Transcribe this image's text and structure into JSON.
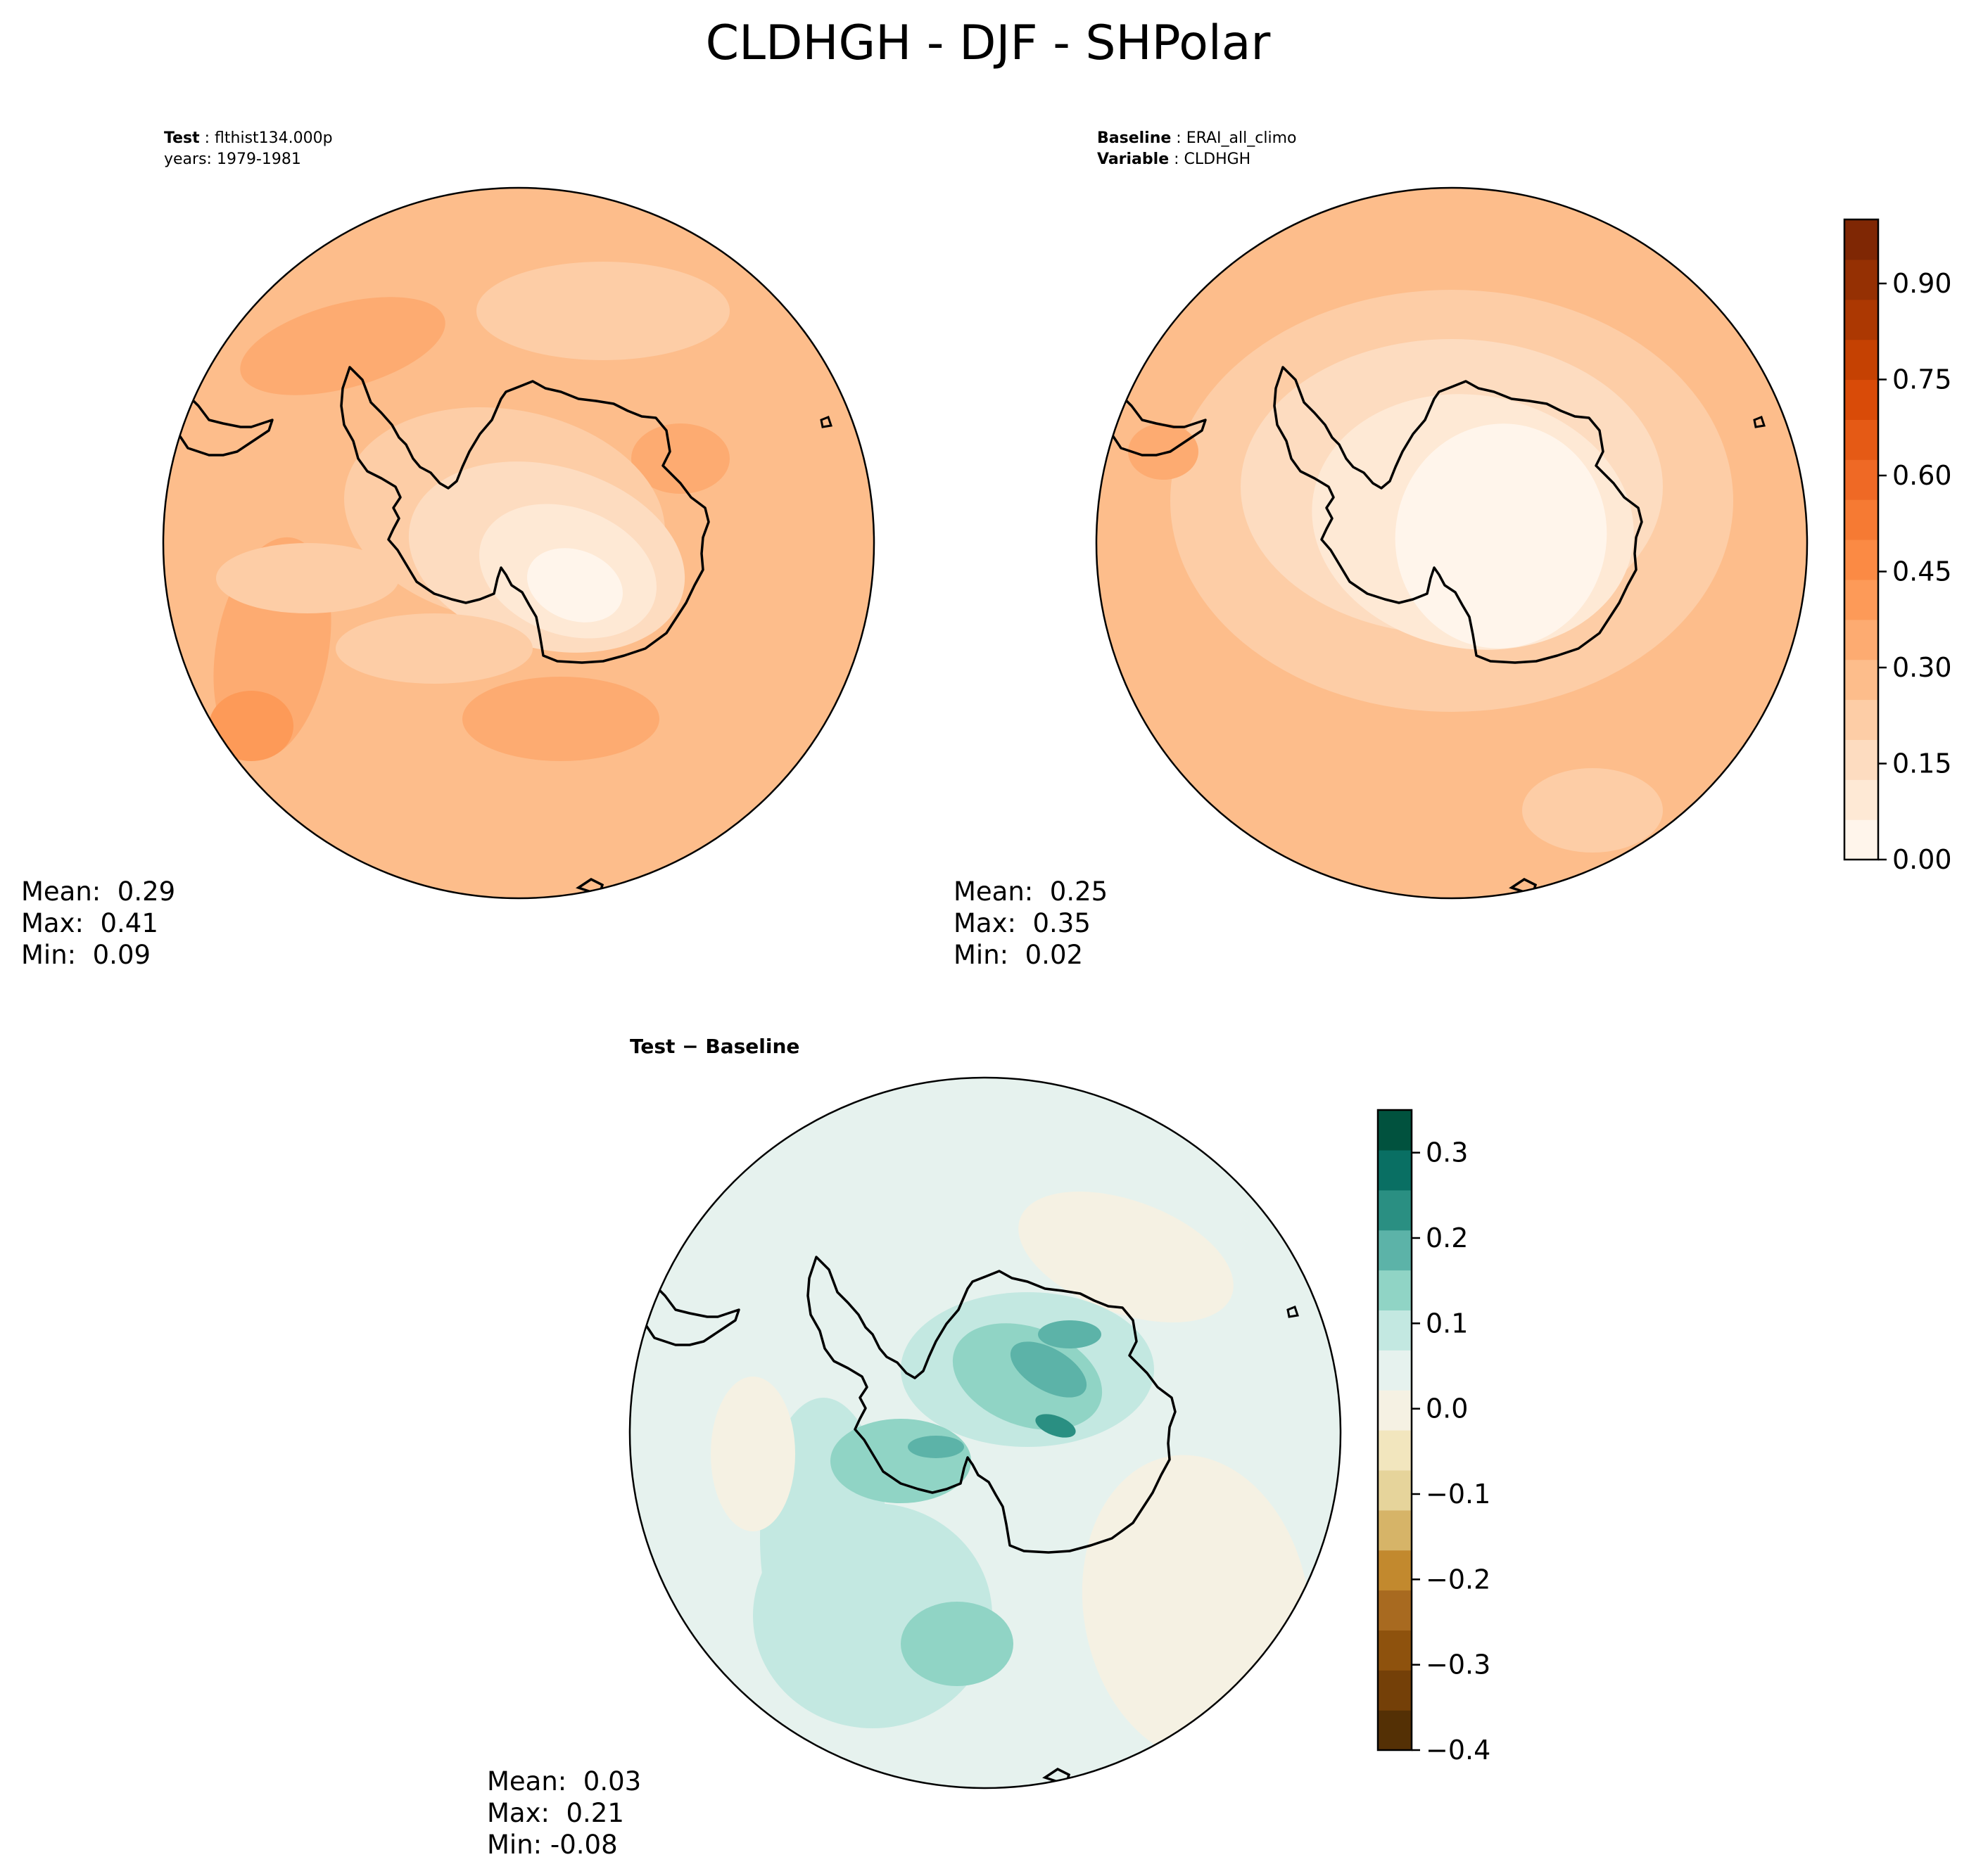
{
  "title": "CLDHGH - DJF - SHPolar",
  "panels": {
    "test": {
      "label": "Test",
      "value": "flthist134.000p",
      "line2": "years: 1979-1981",
      "stats": {
        "mean": "Mean:  0.29",
        "max": "Max:  0.41",
        "min": "Min:  0.09"
      }
    },
    "baseline": {
      "label": "Baseline",
      "value": "ERAI_all_climo",
      "label2": "Variable",
      "value2": "CLDHGH",
      "stats": {
        "mean": "Mean:  0.25",
        "max": "Max:  0.35",
        "min": "Min:  0.02"
      }
    },
    "diff": {
      "title": "Test − Baseline",
      "stats": {
        "mean": "Mean:  0.03",
        "max": "Max:  0.21",
        "min": "Min: -0.08"
      }
    }
  },
  "colorbars": {
    "main": {
      "min": 0.0,
      "max": 1.0,
      "ticks": [
        0.0,
        0.15,
        0.3,
        0.45,
        0.6,
        0.75,
        0.9
      ],
      "tick_labels": [
        "0.00",
        "0.15",
        "0.30",
        "0.45",
        "0.60",
        "0.75",
        "0.90"
      ],
      "colors": [
        "#fff5eb",
        "#fee9d5",
        "#fddcc0",
        "#fdcda6",
        "#fdbd8b",
        "#fdab71",
        "#fd9a58",
        "#fb8a44",
        "#f67a33",
        "#ef6925",
        "#e55a15",
        "#d94b08",
        "#c54102",
        "#ac3802",
        "#953003",
        "#7f2704"
      ]
    },
    "diff": {
      "min": -0.4,
      "max": 0.35,
      "ticks": [
        -0.4,
        -0.3,
        -0.2,
        -0.1,
        0.0,
        0.1,
        0.2,
        0.3
      ],
      "tick_labels": [
        "−0.4",
        "−0.3",
        "−0.2",
        "−0.1",
        "0.0",
        "0.1",
        "0.2",
        "0.3"
      ],
      "colors": [
        "#543005",
        "#744008",
        "#8e520d",
        "#a86a20",
        "#c2892e",
        "#d6b468",
        "#e6d49b",
        "#f2e6be",
        "#f5f1e3",
        "#e6f2ee",
        "#c3e8e1",
        "#90d4c5",
        "#5cb3a8",
        "#2a8f82",
        "#096f63",
        "#01523e"
      ]
    }
  }
}
